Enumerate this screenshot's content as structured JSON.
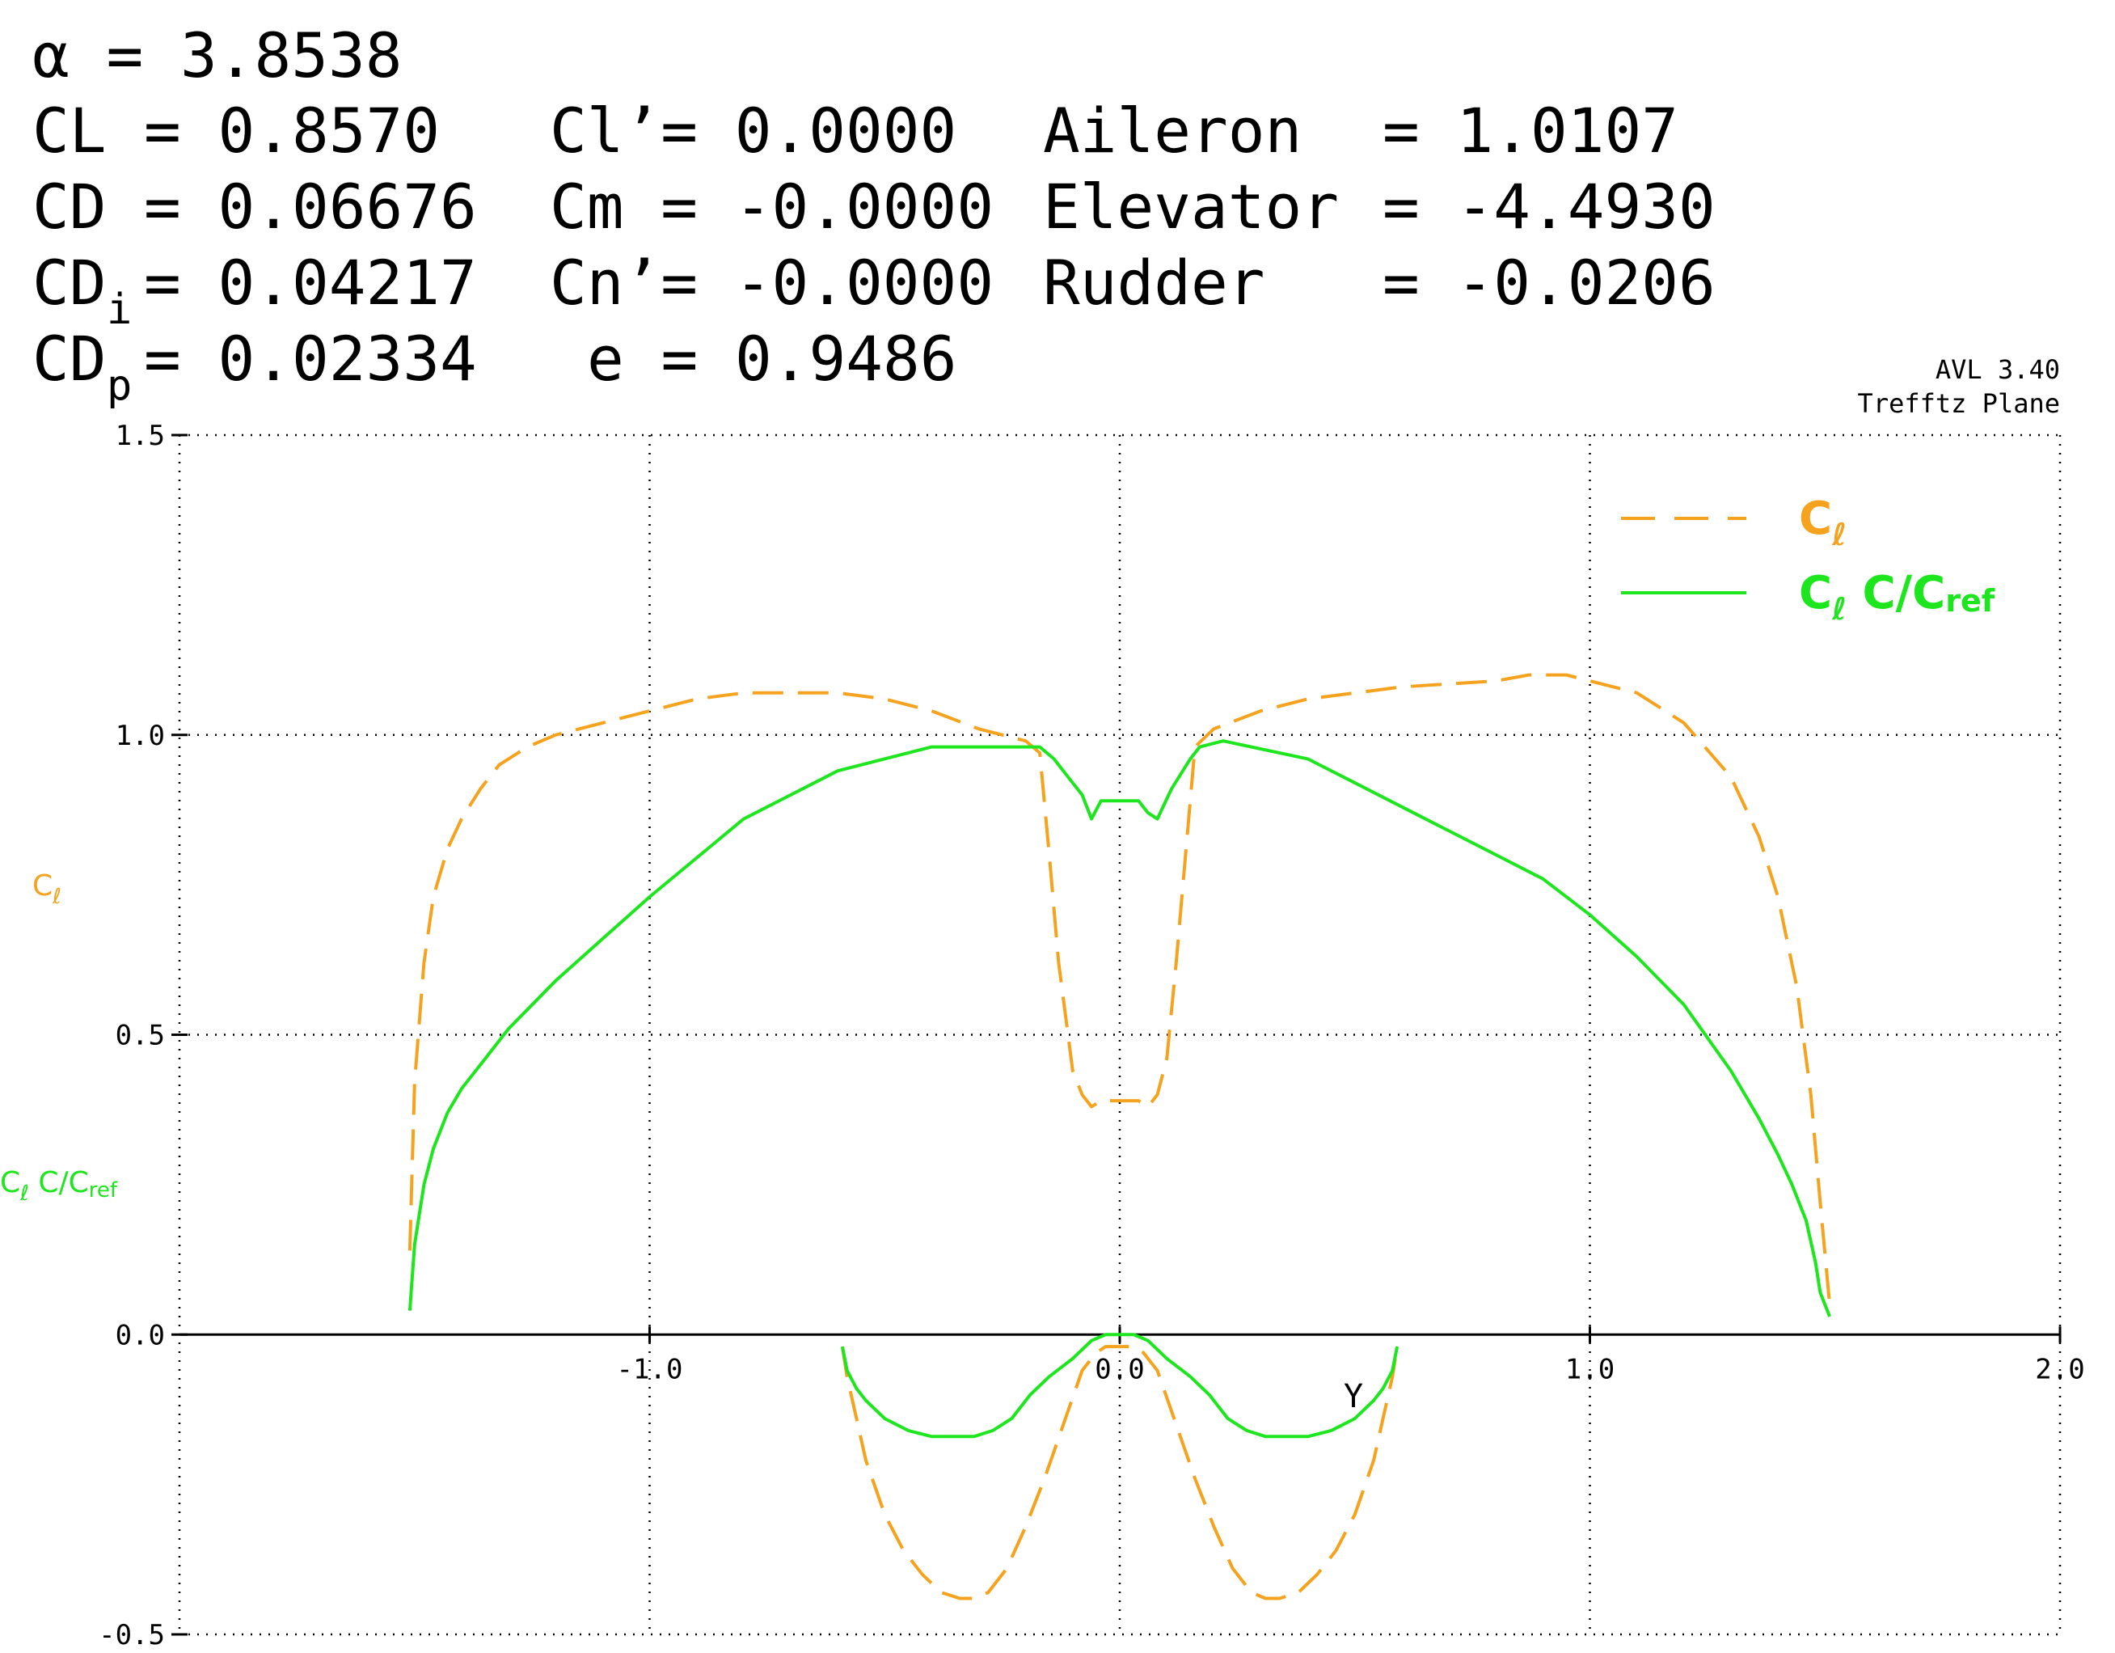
{
  "header": {
    "alpha": "α = 3.8538",
    "CL": {
      "label": "CL",
      "value": "= 0.8570"
    },
    "CD": {
      "label": "CD",
      "value": "= 0.06676"
    },
    "CDi": {
      "label": "CD",
      "sub": "i",
      "value": "= 0.04217"
    },
    "CDp": {
      "label": "CD",
      "sub": "p",
      "value": "= 0.02334"
    },
    "Cl_prime": "Cl’= 0.0000",
    "Cm": "Cm = -0.0000",
    "Cn_prime": "Cn’= -0.0000",
    "e": "e = 0.9486",
    "aileron": {
      "label": "Aileron",
      "value": "= 1.0107"
    },
    "elevator": {
      "label": "Elevator",
      "value": "= -4.4930"
    },
    "rudder": {
      "label": "Rudder",
      "value": "= -0.0206"
    }
  },
  "corner": {
    "version": "AVL 3.40",
    "view": "Trefftz Plane"
  },
  "colors": {
    "cl": "#f5a31e",
    "clc": "#1ee61e",
    "axis": "#000000"
  },
  "chart_data": {
    "type": "line",
    "xlabel": "Y",
    "ylabels": [
      {
        "base": "C",
        "sub": "ℓ"
      },
      {
        "base": "C",
        "sub": "ℓ",
        "rest": " C/C",
        "sub2": "ref"
      }
    ],
    "xlim": [
      -2.0,
      2.0
    ],
    "ylim": [
      -0.5,
      1.5
    ],
    "xticks": [
      -1.0,
      0.0,
      1.0,
      2.0
    ],
    "xtick_labels": [
      "-1.0",
      "0.0",
      "1.0",
      "2.0"
    ],
    "yticks": [
      -0.5,
      0.0,
      0.5,
      1.0,
      1.5
    ],
    "ytick_labels": [
      "-0.5",
      "0.0",
      "0.5",
      "1.0",
      "1.5"
    ],
    "grid": true,
    "legend_position": "top-right",
    "legend": [
      {
        "base": "C",
        "sub": "ℓ"
      },
      {
        "base": "C",
        "sub": "ℓ",
        "rest": " C/C",
        "sub2": "ref"
      }
    ],
    "series": [
      {
        "key": "cl_wing",
        "style": "dashed",
        "color": "#f5a31e",
        "x": [
          -1.51,
          -1.5,
          -1.48,
          -1.46,
          -1.43,
          -1.4,
          -1.36,
          -1.32,
          -1.26,
          -1.2,
          -1.1,
          -1.0,
          -0.9,
          -0.8,
          -0.6,
          -0.5,
          -0.4,
          -0.3,
          -0.2,
          -0.17,
          -0.15,
          -0.13,
          -0.11,
          -0.1,
          -0.08,
          -0.06,
          -0.04,
          0.0,
          0.04,
          0.06,
          0.08,
          0.1,
          0.12,
          0.14,
          0.16,
          0.2,
          0.3,
          0.4,
          0.6,
          0.8,
          0.87,
          0.95,
          1.0,
          1.1,
          1.2,
          1.3,
          1.36,
          1.4,
          1.44,
          1.47,
          1.49,
          1.51
        ],
        "y": [
          0.14,
          0.42,
          0.62,
          0.73,
          0.81,
          0.86,
          0.91,
          0.95,
          0.98,
          1.0,
          1.02,
          1.04,
          1.06,
          1.07,
          1.07,
          1.06,
          1.04,
          1.01,
          0.99,
          0.97,
          0.8,
          0.62,
          0.5,
          0.44,
          0.4,
          0.38,
          0.39,
          0.39,
          0.39,
          0.38,
          0.4,
          0.46,
          0.62,
          0.8,
          0.98,
          1.01,
          1.04,
          1.06,
          1.08,
          1.09,
          1.1,
          1.1,
          1.09,
          1.07,
          1.02,
          0.93,
          0.83,
          0.73,
          0.58,
          0.4,
          0.22,
          0.05
        ]
      },
      {
        "key": "clc_wing",
        "style": "solid",
        "color": "#1ee61e",
        "x": [
          -1.51,
          -1.5,
          -1.48,
          -1.46,
          -1.43,
          -1.4,
          -1.36,
          -1.3,
          -1.2,
          -1.1,
          -1.0,
          -0.8,
          -0.6,
          -0.4,
          -0.22,
          -0.17,
          -0.14,
          -0.11,
          -0.08,
          -0.06,
          -0.04,
          0.0,
          0.04,
          0.06,
          0.08,
          0.11,
          0.15,
          0.17,
          0.22,
          0.4,
          0.6,
          0.8,
          0.9,
          1.0,
          1.1,
          1.2,
          1.3,
          1.36,
          1.4,
          1.43,
          1.46,
          1.48,
          1.49,
          1.51
        ],
        "y": [
          0.04,
          0.15,
          0.25,
          0.31,
          0.37,
          0.41,
          0.45,
          0.51,
          0.59,
          0.66,
          0.73,
          0.86,
          0.94,
          0.98,
          0.98,
          0.98,
          0.96,
          0.93,
          0.9,
          0.86,
          0.89,
          0.89,
          0.89,
          0.87,
          0.86,
          0.91,
          0.96,
          0.98,
          0.99,
          0.96,
          0.88,
          0.8,
          0.76,
          0.7,
          0.63,
          0.55,
          0.44,
          0.36,
          0.3,
          0.25,
          0.19,
          0.12,
          0.07,
          0.03
        ]
      },
      {
        "key": "cl_tail",
        "style": "dashed",
        "color": "#f5a31e",
        "x": [
          -0.59,
          -0.58,
          -0.56,
          -0.54,
          -0.5,
          -0.46,
          -0.42,
          -0.38,
          -0.34,
          -0.31,
          -0.28,
          -0.24,
          -0.2,
          -0.16,
          -0.12,
          -0.08,
          -0.05,
          -0.03,
          0.0,
          0.03,
          0.05,
          0.08,
          0.12,
          0.16,
          0.2,
          0.24,
          0.28,
          0.31,
          0.34,
          0.38,
          0.42,
          0.46,
          0.5,
          0.54,
          0.56,
          0.58,
          0.59
        ],
        "y": [
          -0.02,
          -0.07,
          -0.14,
          -0.21,
          -0.3,
          -0.36,
          -0.4,
          -0.43,
          -0.44,
          -0.44,
          -0.43,
          -0.39,
          -0.32,
          -0.24,
          -0.15,
          -0.06,
          -0.03,
          -0.02,
          -0.02,
          -0.02,
          -0.03,
          -0.06,
          -0.15,
          -0.24,
          -0.32,
          -0.39,
          -0.43,
          -0.44,
          -0.44,
          -0.43,
          -0.4,
          -0.36,
          -0.3,
          -0.21,
          -0.14,
          -0.07,
          -0.02
        ]
      },
      {
        "key": "clc_tail",
        "style": "solid",
        "color": "#1ee61e",
        "x": [
          -0.59,
          -0.58,
          -0.56,
          -0.54,
          -0.5,
          -0.45,
          -0.4,
          -0.35,
          -0.31,
          -0.27,
          -0.23,
          -0.19,
          -0.15,
          -0.1,
          -0.06,
          -0.03,
          0.0,
          0.03,
          0.06,
          0.1,
          0.15,
          0.19,
          0.23,
          0.27,
          0.31,
          0.35,
          0.4,
          0.45,
          0.5,
          0.54,
          0.56,
          0.58,
          0.59
        ],
        "y": [
          -0.02,
          -0.06,
          -0.09,
          -0.11,
          -0.14,
          -0.16,
          -0.17,
          -0.17,
          -0.17,
          -0.16,
          -0.14,
          -0.1,
          -0.07,
          -0.04,
          -0.01,
          0.0,
          0.0,
          0.0,
          -0.01,
          -0.04,
          -0.07,
          -0.1,
          -0.14,
          -0.16,
          -0.17,
          -0.17,
          -0.17,
          -0.16,
          -0.14,
          -0.11,
          -0.09,
          -0.06,
          -0.02
        ]
      }
    ]
  }
}
